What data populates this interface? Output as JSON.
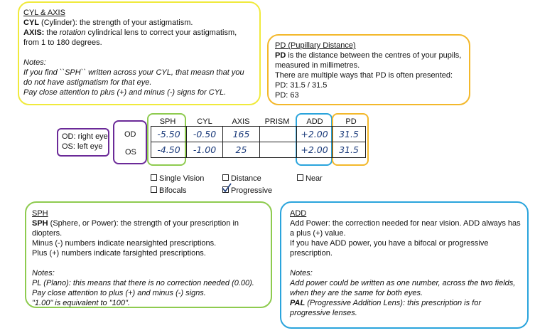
{
  "cyl_box": {
    "title": "CYL & AXIS",
    "cyl_term": "CYL",
    "cyl_text": " (Cylinder): the strength of your astigmatism.",
    "axis_term": "AXIS:",
    "axis_text_pre": " the ",
    "axis_text_em": "rotation",
    "axis_text_post": " cylindrical lens to correct your astigmatism, from 1 to 180 degrees.",
    "notes_title": "Notes:",
    "note1": "If you find ``SPH`` written across your CYL, that measn that you do not have astigmatism for that eye.",
    "note2": "Pay close attention to plus (+) and minus (-) signs for CYL."
  },
  "pd_box": {
    "title": "PD (Pupillary Distance)",
    "pd_term": "PD",
    "pd_text": " is the distance between the centres of your pupils, measured in millimetres.",
    "line2": "There are multiple ways that PD is often presented:",
    "ex1": "PD: 31.5 / 31.5",
    "ex2": "PD: 63"
  },
  "eye_legend": {
    "od": "OD: right eye",
    "os": "OS: left eye"
  },
  "table": {
    "headers": {
      "sph": "SPH",
      "cyl": "CYL",
      "axis": "AXIS",
      "prism": "PRISM",
      "add": "ADD",
      "pd": "PD"
    },
    "row_labels": {
      "od": "OD",
      "os": "OS"
    },
    "od": {
      "sph": "-5.50",
      "cyl": "-0.50",
      "axis": "165",
      "prism": "",
      "add": "+2.00",
      "pd": "31.5"
    },
    "os": {
      "sph": "-4.50",
      "cyl": "-1.00",
      "axis": "25",
      "prism": "",
      "add": "+2.00",
      "pd": "31.5"
    }
  },
  "lens_types": {
    "single_vision": "Single Vision",
    "distance": "Distance",
    "near": "Near",
    "bifocals": "Bifocals",
    "progressive": "Progressive",
    "checked": "Progressive"
  },
  "sph_box": {
    "title": "SPH",
    "sph_term": "SPH",
    "sph_text": " (Sphere, or Power): the strength of your prescription in diopters.",
    "line2": "Minus (-) numbers indicate nearsighted prescriptions.",
    "line3": "Plus (+) numbers indicate farsighted prescriptions.",
    "notes_title": "Notes:",
    "note1": "PL (Plano): this means that there is  no correction needed (0.00).",
    "note2": "Pay close attention to plus (+) and minus (-) signs.",
    "note3": "\"1.00\" is equivalent to \"100\"."
  },
  "add_box": {
    "title": "ADD",
    "line1": " Add Power:  the correction needed for near vision.  ADD always has a  plus (+) value.",
    "line2": "If you have ADD power, you have a bifocal or progressive prescription.",
    "notes_title": "Notes:",
    "note1": "Add power could be written as one number, across the two fields, when they are the same for both eyes.",
    "pal_term": "PAL",
    "pal_text": " (Progressive Addition Lens): this prescription is for progressive lenses."
  },
  "colors": {
    "yellow": "#f0ea3c",
    "orange": "#f3b82b",
    "green": "#8ecb4f",
    "blue": "#2aa4dc",
    "purple": "#6b2a98",
    "handwriting": "#1a3a7a"
  }
}
